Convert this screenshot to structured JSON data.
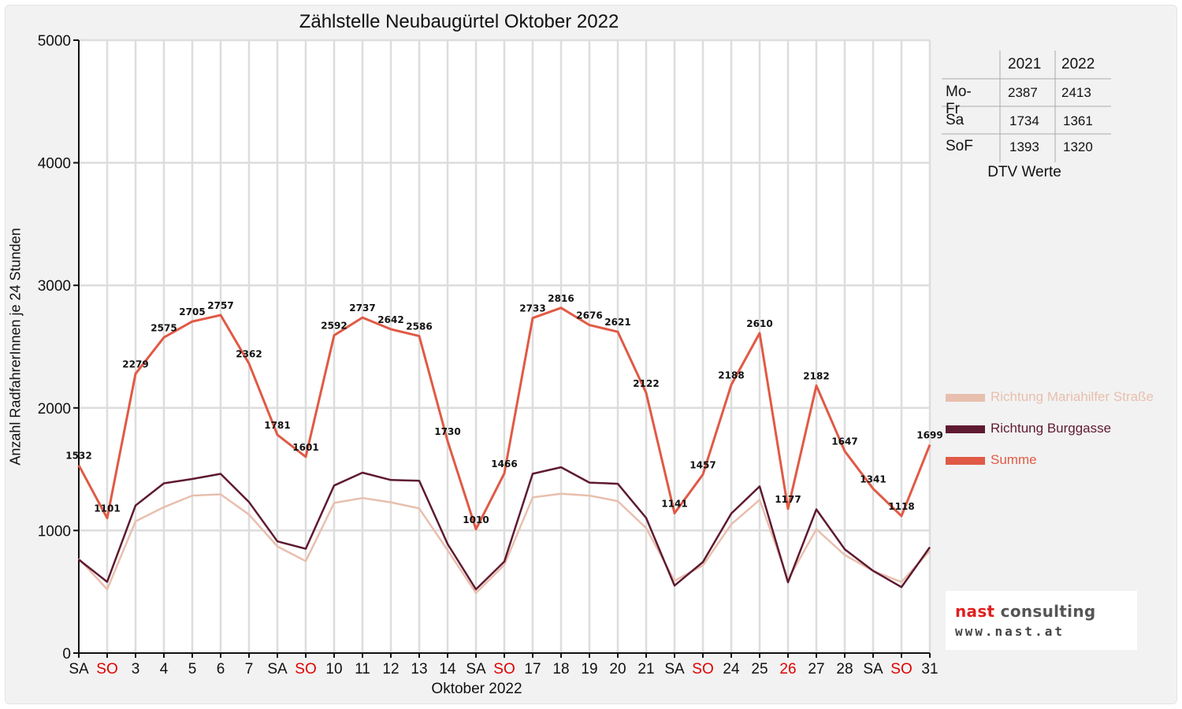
{
  "chart_data": {
    "type": "line",
    "title": "Zählstelle Neubaugürtel Oktober 2022",
    "xlabel": "Oktober 2022",
    "ylabel": "Anzahl RadfahrerInnen je 24 Stunden",
    "ylim": [
      0,
      5000
    ],
    "yticks": [
      "0",
      "1000",
      "2000",
      "3000",
      "4000",
      "5000"
    ],
    "grid": true,
    "legend_position": "right",
    "categories": [
      "SA",
      "SO",
      "3",
      "4",
      "5",
      "6",
      "7",
      "SA",
      "SO",
      "10",
      "11",
      "12",
      "13",
      "14",
      "SA",
      "SO",
      "17",
      "18",
      "19",
      "20",
      "21",
      "SA",
      "SO",
      "24",
      "25",
      "26",
      "27",
      "28",
      "SA",
      "SO",
      "31"
    ],
    "category_colors": [
      "#111111",
      "#e00000",
      "#111111",
      "#111111",
      "#111111",
      "#111111",
      "#111111",
      "#111111",
      "#e00000",
      "#111111",
      "#111111",
      "#111111",
      "#111111",
      "#111111",
      "#111111",
      "#e00000",
      "#111111",
      "#111111",
      "#111111",
      "#111111",
      "#111111",
      "#111111",
      "#e00000",
      "#111111",
      "#111111",
      "#e00000",
      "#111111",
      "#111111",
      "#111111",
      "#e00000",
      "#111111"
    ],
    "series": [
      {
        "name": "Richtung Mariahilfer Straße",
        "color": "#e8bfae",
        "values": [
          770,
          520,
          1075,
          1190,
          1285,
          1295,
          1130,
          870,
          750,
          1225,
          1265,
          1230,
          1180,
          840,
          490,
          720,
          1270,
          1300,
          1285,
          1240,
          1020,
          590,
          715,
          1050,
          1250,
          600,
          1010,
          800,
          670,
          580,
          835
        ]
      },
      {
        "name": "Richtung Burggasse",
        "color": "#5e1a30",
        "values": [
          762,
          581,
          1204,
          1385,
          1420,
          1462,
          1232,
          911,
          851,
          1367,
          1472,
          1412,
          1406,
          890,
          520,
          746,
          1463,
          1516,
          1391,
          1381,
          1102,
          551,
          742,
          1138,
          1360,
          577,
          1172,
          847,
          671,
          538,
          864
        ]
      },
      {
        "name": "Summe",
        "color": "#e05a45",
        "values": [
          1532,
          1101,
          2279,
          2575,
          2705,
          2757,
          2362,
          1781,
          1601,
          2592,
          2737,
          2642,
          2586,
          1730,
          1010,
          1466,
          2733,
          2816,
          2676,
          2621,
          2122,
          1141,
          1457,
          2188,
          2610,
          1177,
          2182,
          1647,
          1341,
          1118,
          1699
        ]
      }
    ],
    "data_labels": [
      "1532",
      "1101",
      "2279",
      "2575",
      "2705",
      "2757",
      "2362",
      "1781",
      "1601",
      "2592",
      "2737",
      "2642",
      "2586",
      "1730",
      "1010",
      "1466",
      "2733",
      "2816",
      "2676",
      "2621",
      "2122",
      "1141",
      "1457",
      "2188",
      "2610",
      "1177",
      "2182",
      "1647",
      "1341",
      "1118",
      "1699"
    ]
  },
  "dtv_table": {
    "columns": [
      "2021",
      "2022"
    ],
    "rows": [
      {
        "label": "Mo-Fr",
        "values": [
          "2387",
          "2413"
        ]
      },
      {
        "label": "Sa",
        "values": [
          "1734",
          "1361"
        ]
      },
      {
        "label": "SoF",
        "values": [
          "1393",
          "1320"
        ]
      }
    ],
    "caption": "DTV Werte"
  },
  "logo": {
    "brand_red": "nast",
    "brand_grey": " consulting",
    "url": "www.nast.at"
  },
  "colors": {
    "background_panel": "#f2f2f2",
    "grid": "#dddddd",
    "weekday_label": "#111111",
    "sunday_label": "#e00000",
    "logo_red": "#e02020"
  }
}
